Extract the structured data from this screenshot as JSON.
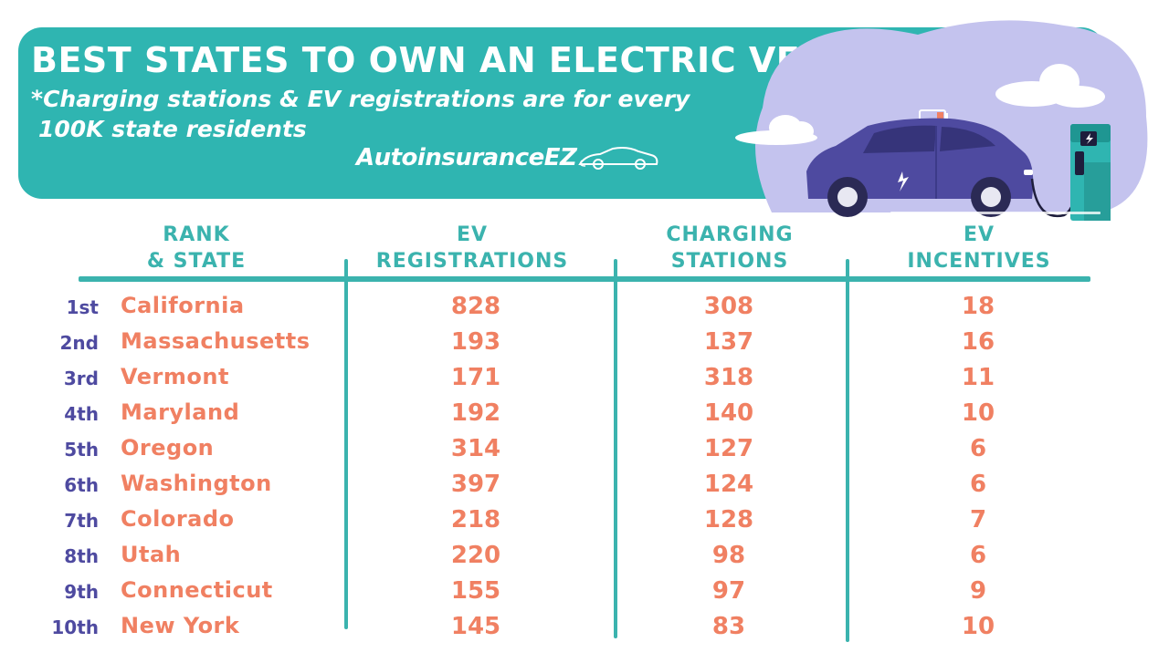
{
  "header": {
    "title": "BEST STATES TO OWN AN ELECTRIC VEHICLE",
    "subtitle_line1": "*Charging stations & EV registrations are for every",
    "subtitle_line2": "100K state residents",
    "logo_text": "AutoinsuranceEZ"
  },
  "colors": {
    "banner": "#2fb5b1",
    "header_text": "#3bb3ae",
    "rank_text": "#4e4aa0",
    "value_text": "#f08062",
    "car": "#4e4aa0",
    "charger": "#2fb5b1"
  },
  "table": {
    "columns": [
      {
        "line1": "RANK",
        "line2": "& STATE"
      },
      {
        "line1": "EV",
        "line2": "REGISTRATIONS"
      },
      {
        "line1": "CHARGING",
        "line2": "STATIONS"
      },
      {
        "line1": "EV",
        "line2": "INCENTIVES"
      }
    ]
  },
  "chart_data": {
    "type": "table",
    "title": "BEST STATES TO OWN AN ELECTRIC VEHICLE",
    "columns": [
      "RANK & STATE",
      "EV REGISTRATIONS",
      "CHARGING STATIONS",
      "EV INCENTIVES"
    ],
    "rows": [
      {
        "rank": "1st",
        "state": "California",
        "ev_registrations": "828",
        "charging_stations": "308",
        "ev_incentives": "18"
      },
      {
        "rank": "2nd",
        "state": "Massachusetts",
        "ev_registrations": "193",
        "charging_stations": "137",
        "ev_incentives": "16"
      },
      {
        "rank": "3rd",
        "state": "Vermont",
        "ev_registrations": "171",
        "charging_stations": "318",
        "ev_incentives": "11"
      },
      {
        "rank": "4th",
        "state": "Maryland",
        "ev_registrations": "192",
        "charging_stations": "140",
        "ev_incentives": "10"
      },
      {
        "rank": "5th",
        "state": "Oregon",
        "ev_registrations": "314",
        "charging_stations": "127",
        "ev_incentives": "6"
      },
      {
        "rank": "6th",
        "state": "Washington",
        "ev_registrations": "397",
        "charging_stations": "124",
        "ev_incentives": "6"
      },
      {
        "rank": "7th",
        "state": "Colorado",
        "ev_registrations": "218",
        "charging_stations": "128",
        "ev_incentives": "7"
      },
      {
        "rank": "8th",
        "state": "Utah",
        "ev_registrations": "220",
        "charging_stations": "98",
        "ev_incentives": "6"
      },
      {
        "rank": "9th",
        "state": "Connecticut",
        "ev_registrations": "155",
        "charging_stations": "97",
        "ev_incentives": "9"
      },
      {
        "rank": "10th",
        "state": "New York",
        "ev_registrations": "145",
        "charging_stations": "83",
        "ev_incentives": "10"
      }
    ]
  }
}
